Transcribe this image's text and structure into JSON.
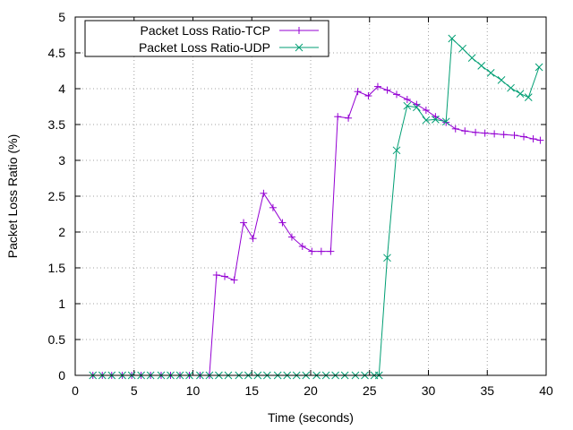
{
  "chart_data": {
    "type": "line",
    "xlabel": "Time (seconds)",
    "ylabel": "Packet Loss Ratio (%)",
    "xlim": [
      0,
      40
    ],
    "ylim": [
      0,
      5
    ],
    "xticks": [
      0,
      5,
      10,
      15,
      20,
      25,
      30,
      35,
      40
    ],
    "yticks": [
      0,
      0.5,
      1,
      1.5,
      2,
      2.5,
      3,
      3.5,
      4,
      4.5,
      5
    ],
    "grid": true,
    "legend_position": "top-left",
    "series": [
      {
        "name": "Packet Loss Ratio-TCP",
        "color": "#9400d3",
        "marker": "plus",
        "points": [
          [
            1.5,
            0
          ],
          [
            2.3,
            0
          ],
          [
            3.1,
            0
          ],
          [
            4.0,
            0
          ],
          [
            4.8,
            0
          ],
          [
            5.6,
            0
          ],
          [
            6.4,
            0
          ],
          [
            7.3,
            0
          ],
          [
            8.1,
            0
          ],
          [
            8.9,
            0
          ],
          [
            9.7,
            0
          ],
          [
            10.6,
            0
          ],
          [
            11.4,
            0
          ],
          [
            12.0,
            1.4
          ],
          [
            12.7,
            1.38
          ],
          [
            13.5,
            1.33
          ],
          [
            14.3,
            2.13
          ],
          [
            15.1,
            1.91
          ],
          [
            16.0,
            2.54
          ],
          [
            16.8,
            2.34
          ],
          [
            17.6,
            2.13
          ],
          [
            18.4,
            1.93
          ],
          [
            19.3,
            1.8
          ],
          [
            20.1,
            1.73
          ],
          [
            20.9,
            1.73
          ],
          [
            21.7,
            1.73
          ],
          [
            22.3,
            3.61
          ],
          [
            23.2,
            3.59
          ],
          [
            24.0,
            3.96
          ],
          [
            24.9,
            3.9
          ],
          [
            25.7,
            4.03
          ],
          [
            26.5,
            3.98
          ],
          [
            27.3,
            3.92
          ],
          [
            28.2,
            3.85
          ],
          [
            29.0,
            3.78
          ],
          [
            29.8,
            3.7
          ],
          [
            30.6,
            3.61
          ],
          [
            31.5,
            3.53
          ],
          [
            32.3,
            3.44
          ],
          [
            33.1,
            3.41
          ],
          [
            34.0,
            3.39
          ],
          [
            34.8,
            3.38
          ],
          [
            35.6,
            3.37
          ],
          [
            36.4,
            3.36
          ],
          [
            37.3,
            3.35
          ],
          [
            38.1,
            3.33
          ],
          [
            38.9,
            3.3
          ],
          [
            39.5,
            3.28
          ]
        ]
      },
      {
        "name": "Packet Loss Ratio-UDP",
        "color": "#009e73",
        "marker": "cross",
        "points": [
          [
            1.5,
            0
          ],
          [
            2.3,
            0
          ],
          [
            3.1,
            0
          ],
          [
            4.0,
            0
          ],
          [
            4.8,
            0
          ],
          [
            5.6,
            0
          ],
          [
            6.4,
            0
          ],
          [
            7.3,
            0
          ],
          [
            8.1,
            0
          ],
          [
            8.9,
            0
          ],
          [
            9.7,
            0
          ],
          [
            10.6,
            0
          ],
          [
            11.4,
            0
          ],
          [
            12.2,
            0
          ],
          [
            13.0,
            0
          ],
          [
            13.9,
            0
          ],
          [
            14.7,
            0
          ],
          [
            15.5,
            0
          ],
          [
            16.3,
            0
          ],
          [
            17.2,
            0
          ],
          [
            18.0,
            0
          ],
          [
            18.8,
            0
          ],
          [
            19.6,
            0
          ],
          [
            20.5,
            0
          ],
          [
            21.3,
            0
          ],
          [
            22.1,
            0
          ],
          [
            22.9,
            0
          ],
          [
            23.8,
            0
          ],
          [
            24.6,
            0
          ],
          [
            25.4,
            0
          ],
          [
            25.8,
            0
          ],
          [
            26.5,
            1.64
          ],
          [
            27.3,
            3.14
          ],
          [
            28.2,
            3.76
          ],
          [
            29.0,
            3.74
          ],
          [
            29.8,
            3.56
          ],
          [
            30.6,
            3.57
          ],
          [
            31.5,
            3.54
          ],
          [
            32.0,
            4.7
          ],
          [
            32.9,
            4.56
          ],
          [
            33.7,
            4.43
          ],
          [
            34.5,
            4.32
          ],
          [
            35.3,
            4.22
          ],
          [
            36.2,
            4.12
          ],
          [
            37.0,
            4.01
          ],
          [
            37.8,
            3.93
          ],
          [
            38.5,
            3.88
          ],
          [
            39.4,
            4.3
          ]
        ]
      }
    ]
  }
}
